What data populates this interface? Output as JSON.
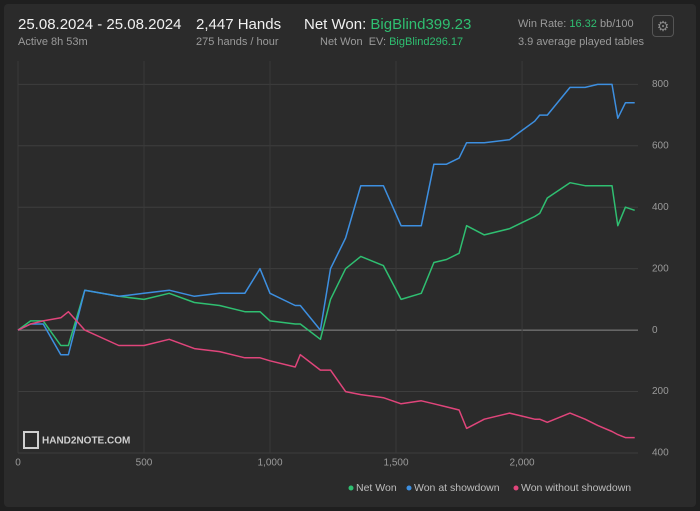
{
  "header": {
    "date_range": "25.08.2024 - 25.08.2024",
    "active": "Active 8h 53m",
    "hands": "2,447 Hands",
    "hands_rate": "275 hands / hour",
    "net_won_label": "Net Won:",
    "net_won_value": "BigBlind399.23",
    "net_won_ev_label": "Net Won  EV:",
    "net_won_ev_value": "BigBlind296.17",
    "win_rate_label": "Win Rate:",
    "win_rate_value": "16.32",
    "win_rate_unit": "bb/100",
    "tables": "3.9 average played tables",
    "logo": "HAND2NOTE.COM"
  },
  "chart_data": {
    "type": "line",
    "x": [
      0,
      50,
      100,
      170,
      200,
      265,
      400,
      500,
      600,
      700,
      800,
      900,
      960,
      1000,
      1100,
      1120,
      1200,
      1240,
      1300,
      1360,
      1450,
      1520,
      1600,
      1650,
      1700,
      1750,
      1780,
      1850,
      1950,
      2000,
      2050,
      2070,
      2100,
      2190,
      2250,
      2300,
      2357,
      2380,
      2410,
      2447
    ],
    "series": [
      {
        "name": "Net Won",
        "color": "#2fbf71",
        "values": [
          0,
          30,
          30,
          -50,
          -50,
          130,
          110,
          100,
          120,
          90,
          80,
          60,
          60,
          30,
          20,
          20,
          -30,
          100,
          200,
          240,
          210,
          100,
          120,
          220,
          230,
          250,
          340,
          310,
          330,
          350,
          370,
          380,
          430,
          480,
          470,
          470,
          470,
          340,
          400,
          390
        ]
      },
      {
        "name": "Won at showdown",
        "color": "#3d8fe0",
        "values": [
          0,
          20,
          20,
          -80,
          -80,
          130,
          110,
          120,
          130,
          110,
          120,
          120,
          200,
          120,
          80,
          80,
          0,
          200,
          300,
          470,
          470,
          340,
          340,
          540,
          540,
          560,
          610,
          610,
          620,
          650,
          680,
          700,
          700,
          790,
          790,
          800,
          800,
          690,
          740,
          740
        ]
      },
      {
        "name": "Won without showdown",
        "color": "#e0457b",
        "values": [
          0,
          20,
          30,
          40,
          60,
          0,
          -50,
          -50,
          -30,
          -60,
          -70,
          -90,
          -90,
          -100,
          -120,
          -80,
          -130,
          -130,
          -200,
          -210,
          -220,
          -240,
          -230,
          -240,
          -250,
          -260,
          -320,
          -290,
          -270,
          -280,
          -290,
          -290,
          -300,
          -270,
          -290,
          -310,
          -330,
          -340,
          -350,
          -350
        ]
      }
    ],
    "xlim": [
      0,
      2460
    ],
    "xticks": [
      0,
      500,
      {
        "value": 1000,
        "label": "1,000"
      },
      {
        "value": 1500,
        "label": "1,500"
      },
      {
        "value": 2000,
        "label": "2,000"
      }
    ],
    "ylim": [
      -400,
      850
    ],
    "yticks": [
      {
        "value": -400,
        "label": "400"
      },
      {
        "value": -200,
        "label": "200"
      },
      0,
      200,
      400,
      600,
      800
    ],
    "grid": true
  }
}
